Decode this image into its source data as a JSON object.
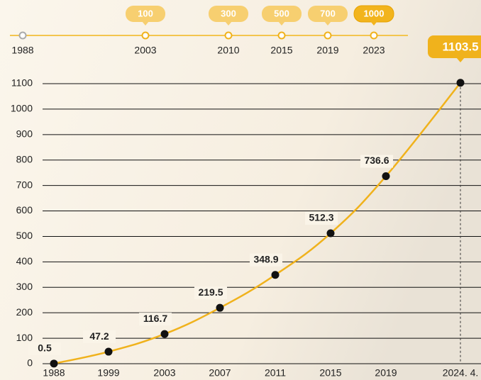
{
  "chart_data": {
    "type": "line",
    "categories": [
      "1988",
      "1999",
      "2003",
      "2007",
      "2011",
      "2015",
      "2019",
      "2024. 4."
    ],
    "values": [
      0.5,
      47.2,
      116.7,
      219.5,
      348.9,
      512.3,
      736.6,
      1103.5
    ],
    "color": "#f0b21c",
    "ylim": [
      0,
      1100
    ],
    "yticks": [
      0,
      100,
      200,
      300,
      400,
      500,
      600,
      700,
      800,
      900,
      1000,
      1100
    ],
    "grid": true
  },
  "timeline": {
    "years": [
      "1988",
      "2003",
      "2010",
      "2015",
      "2019",
      "2023"
    ],
    "badges": [
      null,
      100,
      300,
      500,
      700,
      1000
    ]
  }
}
